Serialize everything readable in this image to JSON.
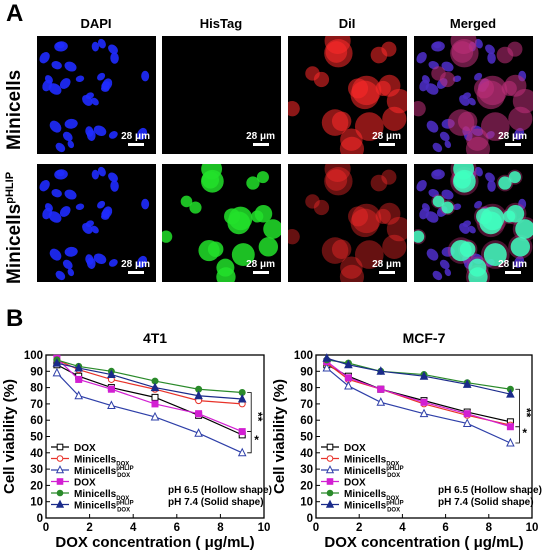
{
  "figure": {
    "panel_a_letter": "A",
    "panel_b_letter": "B",
    "column_headers": [
      "DAPI",
      "HisTag",
      "DiI",
      "Merged"
    ],
    "row_labels": [
      {
        "main": "Minicells",
        "sup": ""
      },
      {
        "main": "Minicells",
        "sup": "pHLIP"
      }
    ],
    "scale_bar_label": "28 μm",
    "tile_colors": {
      "DAPI": "#1f2bff",
      "HisTag": "#22e02a",
      "DiI": "#ff2a2a",
      "MergedA": "#c0307a",
      "MergedB": "#40ffc0"
    }
  },
  "legend": {
    "entries": [
      {
        "label": "DOX",
        "sub": "",
        "sup": "",
        "color": "#000000",
        "marker": "square",
        "filled": false
      },
      {
        "label": "Minicells",
        "sub": "DOX",
        "sup": "",
        "color": "#e8332a",
        "marker": "circle",
        "filled": false
      },
      {
        "label": "Minicells",
        "sub": "DOX",
        "sup": "pHLIP",
        "color": "#2e3fa8",
        "marker": "triangle",
        "filled": false
      },
      {
        "label": "DOX",
        "sub": "",
        "sup": "",
        "color": "#d21fd2",
        "marker": "square",
        "filled": true
      },
      {
        "label": "Minicells",
        "sub": "DOX",
        "sup": "",
        "color": "#2a8a2a",
        "marker": "circle",
        "filled": true
      },
      {
        "label": "Minicells",
        "sub": "DOX",
        "sup": "pHLIP",
        "color": "#1a2a8a",
        "marker": "triangle",
        "filled": true
      }
    ],
    "ph_hollow": "pH 6.5 (Hollow shape)",
    "ph_solid": "pH 7.4 (Solid    shape)"
  },
  "chart_data": [
    {
      "type": "line",
      "title": "4T1",
      "xlabel": "DOX concentration ( μg/mL)",
      "ylabel": "Cell viability (%)",
      "xlim": [
        0,
        10
      ],
      "ylim": [
        0,
        100
      ],
      "xticks": [
        0,
        2,
        4,
        6,
        8,
        10
      ],
      "yticks": [
        0,
        10,
        20,
        30,
        40,
        50,
        60,
        70,
        80,
        90,
        100
      ],
      "x": [
        0.5,
        1.5,
        3,
        5,
        7,
        9
      ],
      "series": [
        {
          "values": [
            94,
            87,
            80,
            74,
            63,
            51
          ]
        },
        {
          "values": [
            97,
            91,
            85,
            79,
            72,
            70
          ]
        },
        {
          "values": [
            89,
            75,
            69,
            62,
            52,
            40
          ]
        },
        {
          "values": [
            98,
            85,
            79,
            70,
            64,
            53
          ]
        },
        {
          "values": [
            97,
            93,
            90,
            84,
            79,
            77
          ]
        },
        {
          "values": [
            95,
            92,
            88,
            80,
            75,
            73
          ]
        }
      ],
      "significance": [
        "**",
        "*"
      ]
    },
    {
      "type": "line",
      "title": "MCF-7",
      "xlabel": "DOX concentration ( μg/mL)",
      "ylabel": "Cell viability (%)",
      "xlim": [
        0,
        10
      ],
      "ylim": [
        0,
        100
      ],
      "xticks": [
        0,
        2,
        4,
        6,
        8,
        10
      ],
      "yticks": [
        0,
        10,
        20,
        30,
        40,
        50,
        60,
        70,
        80,
        90,
        100
      ],
      "x": [
        0.5,
        1.5,
        3,
        5,
        7,
        9
      ],
      "series": [
        {
          "values": [
            94,
            87,
            79,
            72,
            65,
            59
          ]
        },
        {
          "values": [
            95,
            85,
            79,
            70,
            63,
            57
          ]
        },
        {
          "values": [
            92,
            81,
            71,
            64,
            58,
            46
          ]
        },
        {
          "values": [
            96,
            86,
            79,
            71,
            64,
            56
          ]
        },
        {
          "values": [
            97,
            95,
            90,
            88,
            83,
            79
          ]
        },
        {
          "values": [
            98,
            94,
            90,
            87,
            82,
            76
          ]
        }
      ],
      "significance": [
        "**",
        "*"
      ]
    }
  ]
}
